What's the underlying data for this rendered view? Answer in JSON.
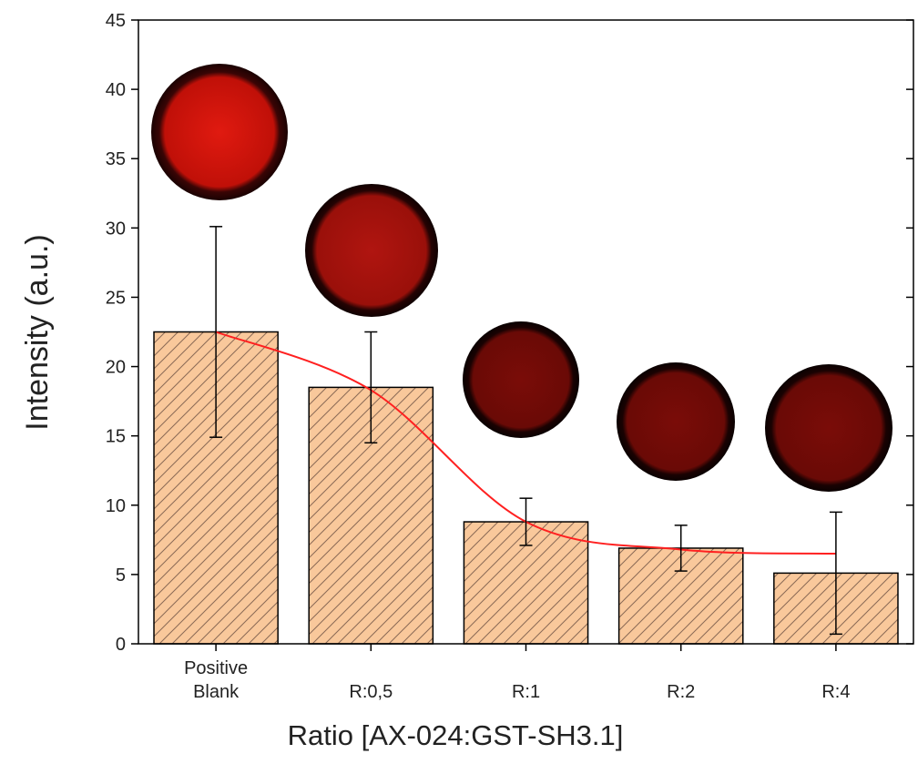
{
  "chart_data": {
    "type": "bar",
    "x_label": "Ratio [AX-024:GST-SH3.1]",
    "y_label": "Intensity (a.u.)",
    "categories": [
      "Positive\nBlank",
      "R:0,5",
      "R:1",
      "R:2",
      "R:4"
    ],
    "values": [
      22.5,
      18.5,
      8.8,
      6.9,
      5.1
    ],
    "errors": [
      7.6,
      4.0,
      1.7,
      1.65,
      4.4
    ],
    "color": "#f9c89b",
    "hatch_color": "#8a6a55",
    "fit": {
      "color": "#ff2020",
      "values": [
        22.5,
        18.3,
        8.8,
        6.8,
        6.5
      ]
    },
    "ylim": [
      0,
      45
    ],
    "yticks": [
      0,
      5,
      10,
      15,
      20,
      25,
      30,
      35,
      40,
      45
    ]
  }
}
